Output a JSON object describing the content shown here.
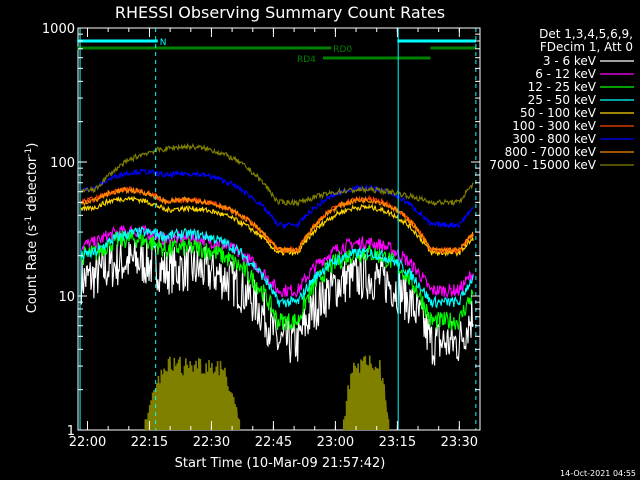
{
  "chart_data": {
    "type": "line",
    "title": "RHESSI Observing Summary Count Rates",
    "xlabel": "Start Time (10-Mar-09 21:57:42)",
    "ylabel_parts": [
      "Count Rate (s",
      "-1",
      " detector",
      "-1",
      ")"
    ],
    "ylabel": "Count Rate (s-1 detector-1)",
    "y_scale": "log",
    "ylim": [
      1,
      1000
    ],
    "xlim": [
      "21:57:42",
      "23:35:00"
    ],
    "x_ticks": [
      "22:00",
      "22:15",
      "22:30",
      "22:45",
      "23:00",
      "23:15",
      "23:30"
    ],
    "y_ticks": [
      "1",
      "10",
      "100",
      "1000"
    ],
    "footer_date": "14-Oct-2021 04:55",
    "legend": {
      "header": [
        "Det 1,3,4,5,6,9,",
        "FDecim 1, Att 0"
      ],
      "placement": "right"
    },
    "series": [
      {
        "name": "3 - 6 keV",
        "color": "#ffffff",
        "night": 4.5,
        "peak1": 16,
        "peak2": 14,
        "noise": 0.18
      },
      {
        "name": "6 - 12 keV",
        "color": "#ff00ff",
        "night": 11,
        "peak1": 27,
        "peak2": 25,
        "noise": 0.05
      },
      {
        "name": "12 - 25 keV",
        "color": "#00ff00",
        "night": 6.5,
        "peak1": 23,
        "peak2": 21,
        "noise": 0.07
      },
      {
        "name": "25 - 50 keV",
        "color": "#00ffff",
        "night": 9,
        "peak1": 29,
        "peak2": 21,
        "noise": 0.04
      },
      {
        "name": "50 - 100 keV",
        "color": "#ffd700",
        "night": 21,
        "peak1": 45,
        "peak2": 46,
        "noise": 0.02
      },
      {
        "name": "100 - 300 keV",
        "color": "#ff4500",
        "night": 22,
        "peak1": 52,
        "peak2": 53,
        "noise": 0.02
      },
      {
        "name": "300 - 800 keV",
        "color": "#0000ff",
        "night": 34,
        "peak1": 82,
        "peak2": 64,
        "noise": 0.02
      },
      {
        "name": "800 - 7000 keV",
        "color": "#ff8c00",
        "night": 22,
        "peak1": 52,
        "peak2": 52,
        "noise": 0.02
      },
      {
        "name": "7000 - 15000 keV",
        "color": "#808000",
        "night": 50,
        "peak1": 130,
        "peak2": 62,
        "noise": 0.02
      }
    ],
    "series_note_colors": {
      "red": "#ff0000",
      "lime": "#00ff00",
      "white": "#000000"
    },
    "orbit_segments": {
      "night_label": "N",
      "rd0_label": "RD0",
      "rd4_label": "RD4",
      "night_color": "#00ffff",
      "rd_color": "#008000"
    },
    "attenuator_color": "#808000"
  }
}
